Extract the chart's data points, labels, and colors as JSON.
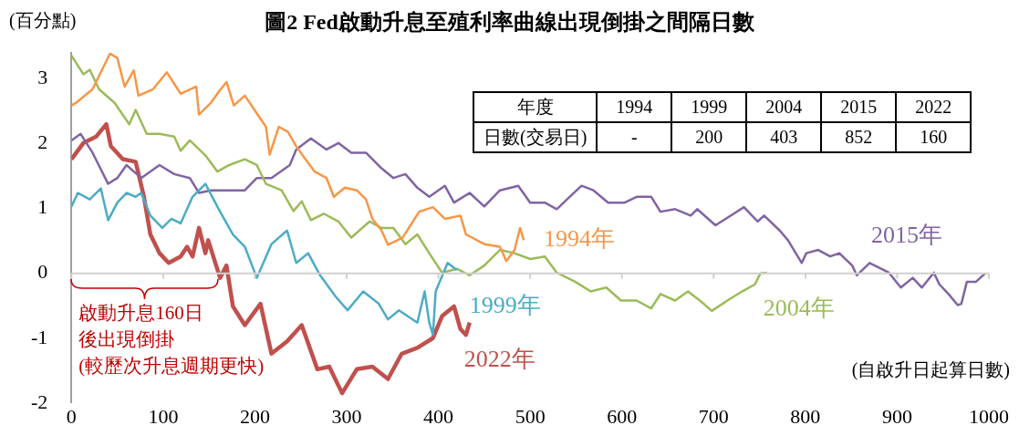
{
  "chart_data": {
    "type": "line",
    "title": "圖2 Fed啟動升息至殖利率曲線出現倒掛之間隔日數",
    "xlabel": "(自啟升日起算日數)",
    "ylabel": "(百分點)",
    "xlim": [
      0,
      1000
    ],
    "xticks": [
      0,
      100,
      200,
      300,
      400,
      500,
      600,
      700,
      800,
      900,
      1000
    ],
    "ylim": [
      -2,
      3.4
    ],
    "yticks": [
      -2,
      -1,
      0,
      1,
      2,
      3
    ],
    "grid": false,
    "legend": false,
    "ref_lines": [
      {
        "axis": "y",
        "value": 0,
        "color": "#d0d0d0"
      }
    ],
    "annotations": [
      "啟動升息160日",
      "後出現倒掛",
      "(較歷次升息週期更快)",
      "年度",
      "1994",
      "1999",
      "2004",
      "2015",
      "2022",
      "日數(交易日)",
      "-",
      "200",
      "403",
      "852",
      "160"
    ],
    "series": [
      {
        "name": "1994年",
        "color": "#f79646",
        "x": [
          0,
          5,
          23,
          42,
          50,
          58,
          68,
          73,
          89,
          104,
          119,
          136,
          139,
          152,
          161,
          169,
          177,
          189,
          201,
          212,
          216,
          226,
          236,
          245,
          255,
          265,
          278,
          286,
          298,
          311,
          321,
          328,
          338,
          345,
          361,
          379,
          394,
          407,
          424,
          430,
          450,
          467,
          474,
          483,
          489,
          493
        ],
        "values": [
          2.59,
          2.63,
          2.84,
          3.39,
          3.32,
          2.88,
          3.13,
          2.74,
          2.84,
          3.1,
          2.77,
          2.88,
          2.45,
          2.63,
          2.81,
          2.95,
          2.59,
          2.74,
          2.49,
          2.26,
          1.83,
          2.26,
          2.18,
          1.96,
          1.76,
          1.57,
          1.47,
          1.18,
          1.32,
          1.28,
          1.14,
          0.84,
          0.66,
          0.44,
          0.55,
          0.95,
          1.02,
          0.84,
          0.89,
          0.6,
          0.45,
          0.41,
          0.19,
          0.36,
          0.7,
          0.51
        ]
      },
      {
        "name": "1999年",
        "color": "#4bacc6",
        "x": [
          0,
          7,
          20,
          32,
          40,
          50,
          60,
          70,
          76,
          86,
          99,
          109,
          119,
          132,
          146,
          162,
          176,
          189,
          202,
          218,
          235,
          245,
          258,
          271,
          288,
          301,
          318,
          335,
          345,
          357,
          377,
          385,
          390,
          394,
          397,
          410,
          420
        ],
        "values": [
          1.03,
          1.24,
          1.14,
          1.31,
          0.82,
          1.09,
          1.24,
          1.18,
          1.24,
          0.89,
          0.7,
          0.84,
          0.77,
          1.18,
          1.38,
          0.95,
          0.6,
          0.41,
          -0.07,
          0.45,
          0.66,
          0.16,
          0.31,
          -0.03,
          -0.36,
          -0.57,
          -0.28,
          -0.47,
          -0.71,
          -0.57,
          -0.76,
          -0.28,
          -0.76,
          -0.95,
          -0.28,
          0.16,
          0.05
        ]
      },
      {
        "name": "2004年",
        "color": "#9bbb59",
        "x": [
          0,
          13,
          20,
          30,
          47,
          63,
          70,
          82,
          96,
          112,
          119,
          129,
          146,
          159,
          172,
          189,
          202,
          212,
          229,
          242,
          251,
          261,
          275,
          291,
          305,
          325,
          338,
          351,
          364,
          377,
          390,
          404,
          420,
          434,
          450,
          467,
          483,
          500,
          516,
          529,
          549,
          566,
          583,
          599,
          616,
          632,
          642,
          658,
          672,
          685,
          698,
          715,
          731,
          745,
          751,
          758
        ],
        "values": [
          3.36,
          3.07,
          3.14,
          2.84,
          2.63,
          2.3,
          2.52,
          2.15,
          2.15,
          2.11,
          1.89,
          2.05,
          1.82,
          1.57,
          1.67,
          1.76,
          1.67,
          1.38,
          1.28,
          0.96,
          1.11,
          0.82,
          0.92,
          0.8,
          0.55,
          0.8,
          0.7,
          0.7,
          0.45,
          0.6,
          0.31,
          0.01,
          0.07,
          -0.03,
          0.12,
          0.36,
          0.31,
          0.22,
          0.26,
          0.01,
          -0.13,
          -0.28,
          -0.22,
          -0.42,
          -0.42,
          -0.54,
          -0.32,
          -0.42,
          -0.28,
          -0.42,
          -0.58,
          -0.42,
          -0.28,
          -0.17,
          0,
          0.01
        ]
      },
      {
        "name": "2015年",
        "color": "#8064a2",
        "x": [
          0,
          10,
          23,
          40,
          50,
          60,
          76,
          96,
          112,
          129,
          139,
          152,
          172,
          189,
          202,
          218,
          238,
          245,
          261,
          278,
          291,
          305,
          321,
          338,
          351,
          364,
          377,
          390,
          407,
          417,
          434,
          450,
          467,
          487,
          500,
          516,
          529,
          543,
          556,
          569,
          585,
          603,
          616,
          632,
          642,
          658,
          675,
          682,
          702,
          722,
          733,
          748,
          755,
          772,
          781,
          796,
          801,
          814,
          827,
          837,
          851,
          856,
          870,
          891,
          904,
          917,
          927,
          940,
          946,
          956,
          966,
          970,
          976,
          986,
          996
        ],
        "values": [
          2.05,
          2.15,
          1.86,
          1.38,
          1.47,
          1.67,
          1.47,
          1.67,
          1.53,
          1.47,
          1.24,
          1.28,
          1.28,
          1.28,
          1.47,
          1.47,
          1.67,
          1.91,
          2.08,
          1.91,
          2.01,
          1.86,
          1.86,
          1.62,
          1.47,
          1.53,
          1.32,
          1.18,
          1.35,
          1.09,
          1.24,
          1.03,
          1.28,
          1.35,
          1.09,
          1.09,
          0.99,
          1.18,
          1.35,
          1.28,
          1.09,
          1.09,
          1.18,
          1.18,
          0.95,
          0.99,
          0.89,
          0.99,
          0.74,
          0.92,
          1.02,
          0.8,
          0.89,
          0.66,
          0.51,
          0.16,
          0.31,
          0.36,
          0.26,
          0.31,
          0.12,
          -0.03,
          0.16,
          0.01,
          -0.22,
          -0.07,
          -0.22,
          0.01,
          -0.17,
          -0.32,
          -0.49,
          -0.47,
          -0.13,
          -0.13,
          0
        ]
      },
      {
        "name": "2022年",
        "color": "#c0504d",
        "x": [
          0,
          13,
          27,
          38,
          43,
          56,
          70,
          79,
          86,
          96,
          106,
          119,
          126,
          132,
          139,
          146,
          149,
          162,
          169,
          176,
          189,
          206,
          218,
          235,
          251,
          268,
          281,
          295,
          311,
          328,
          345,
          360,
          377,
          394,
          404,
          417,
          424,
          430,
          434
        ],
        "values": [
          1.76,
          2.01,
          2.11,
          2.3,
          1.96,
          1.76,
          1.72,
          1.18,
          0.6,
          0.31,
          0.16,
          0.26,
          0.41,
          0.26,
          0.7,
          0.31,
          0.51,
          -0.07,
          0.12,
          -0.51,
          -0.8,
          -0.47,
          -1.24,
          -1.05,
          -0.8,
          -1.48,
          -1.44,
          -1.85,
          -1.48,
          -1.44,
          -1.63,
          -1.24,
          -1.15,
          -1,
          -0.66,
          -0.51,
          -0.86,
          -0.95,
          -0.76
        ]
      }
    ]
  }
}
